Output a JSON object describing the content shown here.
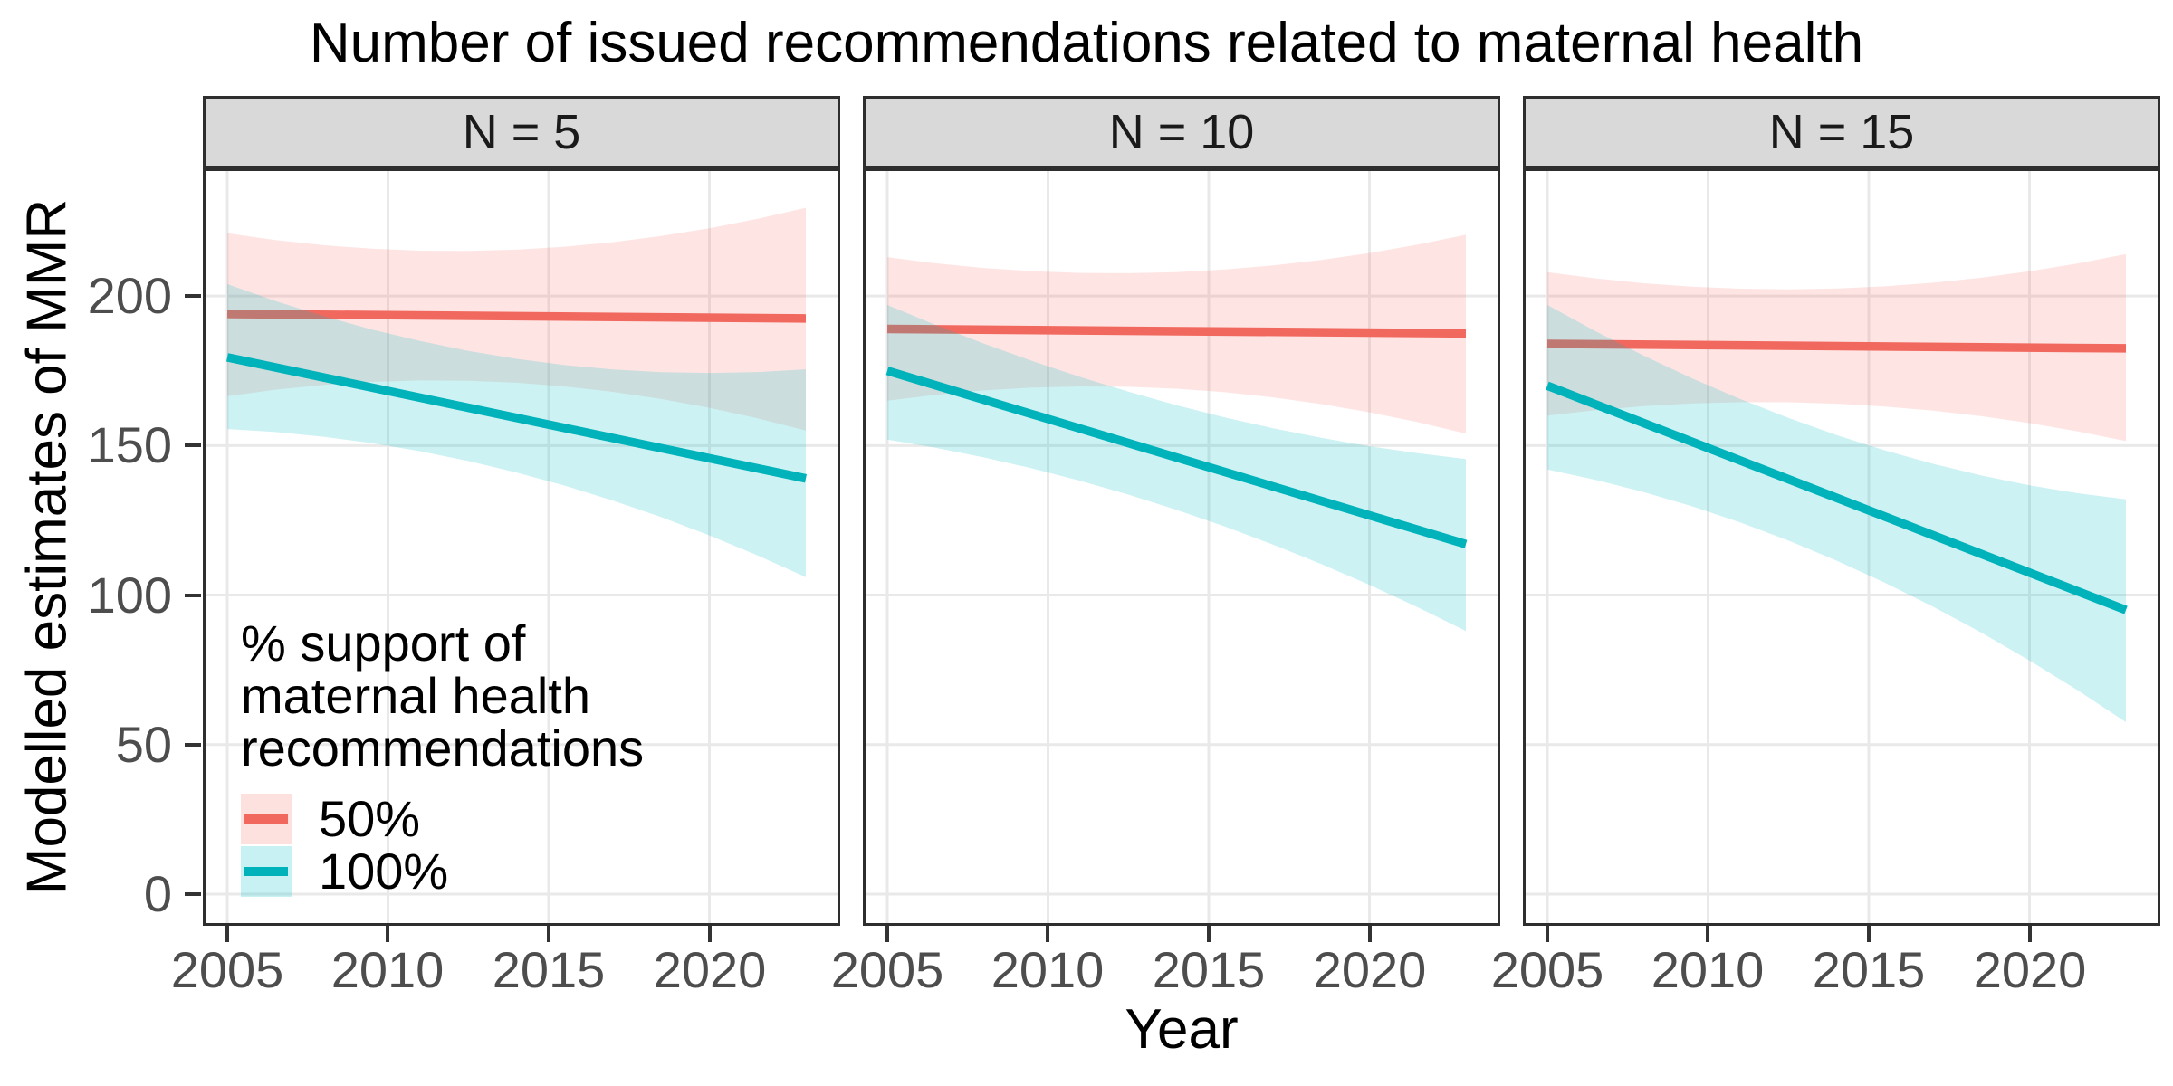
{
  "chart_data": {
    "type": "line",
    "title": "Number of issued recommendations related to maternal health",
    "xlabel": "Year",
    "ylabel": "Modelled estimates of MMR",
    "x_ticks": [
      2005,
      2010,
      2015,
      2020
    ],
    "y_ticks": [
      200,
      150,
      100,
      50,
      0
    ],
    "xlim": [
      2004.24,
      2024.07
    ],
    "ylim": [
      -10.6,
      242.7
    ],
    "grid": "major-only",
    "colors": {
      "grid": "#e9e9e9",
      "panel_border": "#2e2e2e",
      "strip_fill": "#d9d9d9",
      "tick_text": "#4d4d4d",
      "red_line": "#f1685e",
      "red_ribbon": "rgba(248,118,109,0.19)",
      "teal_line": "#00b2ba",
      "teal_ribbon": "rgba(0,191,196,0.20)"
    },
    "legend": {
      "title_lines": [
        "% support of",
        "maternal health",
        "recommendations"
      ],
      "position": "inside bottom-left of first panel",
      "entries": [
        {
          "label": "50%",
          "line_color": "#f1685e",
          "fill": "rgba(248,118,109,0.22)"
        },
        {
          "label": "100%",
          "line_color": "#00b2ba",
          "fill": "rgba(0,191,196,0.22)"
        }
      ]
    },
    "facets": [
      {
        "label": "N = 5",
        "series": [
          {
            "name": "50%",
            "x": [
              2005,
              2023
            ],
            "y": [
              194,
              192.5
            ],
            "ribbon": {
              "x": [
                2005,
                2014,
                2023
              ],
              "upper": [
                221,
                215.5,
                229.5
              ],
              "lower": [
                166.5,
                171,
                155
              ]
            }
          },
          {
            "name": "100%",
            "x": [
              2005,
              2023
            ],
            "y": [
              179.5,
              139
            ],
            "ribbon": {
              "x": [
                2005,
                2014,
                2023
              ],
              "upper": [
                204,
                179,
                175.5
              ],
              "lower": [
                155.5,
                141,
                106
              ]
            }
          }
        ]
      },
      {
        "label": "N = 10",
        "series": [
          {
            "name": "50%",
            "x": [
              2005,
              2023
            ],
            "y": [
              189,
              187.5
            ],
            "ribbon": {
              "x": [
                2005,
                2014,
                2023
              ],
              "upper": [
                213,
                208,
                220.5
              ],
              "lower": [
                165,
                169,
                154
              ]
            }
          },
          {
            "name": "100%",
            "x": [
              2005,
              2023
            ],
            "y": [
              175,
              117
            ],
            "ribbon": {
              "x": [
                2005,
                2014,
                2023
              ],
              "upper": [
                197,
                163.5,
                145.5
              ],
              "lower": [
                152,
                128.5,
                88
              ]
            }
          }
        ]
      },
      {
        "label": "N = 15",
        "series": [
          {
            "name": "50%",
            "x": [
              2005,
              2023
            ],
            "y": [
              184,
              182.5
            ],
            "ribbon": {
              "x": [
                2005,
                2014,
                2023
              ],
              "upper": [
                208,
                202.5,
                214
              ],
              "lower": [
                160,
                164,
                151.5
              ]
            }
          },
          {
            "name": "100%",
            "x": [
              2005,
              2023
            ],
            "y": [
              170,
              95
            ],
            "ribbon": {
              "x": [
                2005,
                2014,
                2023
              ],
              "upper": [
                197,
                153.5,
                132
              ],
              "lower": [
                142,
                111.5,
                57.5
              ]
            }
          }
        ]
      }
    ]
  }
}
